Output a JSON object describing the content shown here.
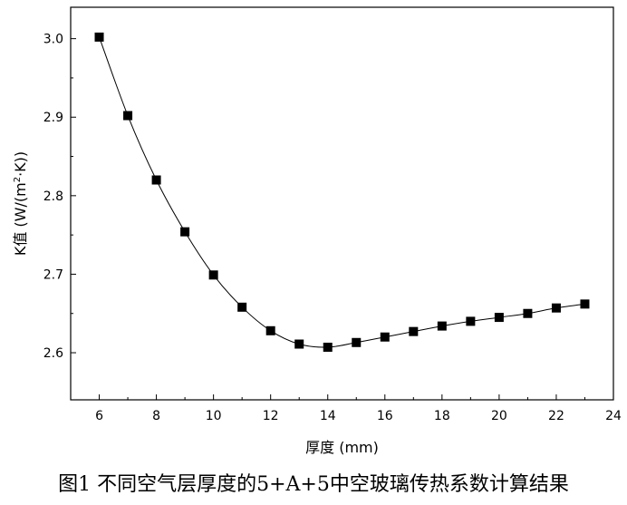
{
  "chart_data": {
    "type": "line",
    "title": "",
    "xlabel": "厚度 (mm)",
    "ylabel": "K值 (W/(m²·K))",
    "ylabel_parts": {
      "main": "K值 (W/(m",
      "sup": "2",
      "tail": "·K))"
    },
    "xlim": [
      5,
      24
    ],
    "ylim": [
      2.54,
      3.04
    ],
    "xticks": [
      6,
      8,
      10,
      12,
      14,
      16,
      18,
      20,
      22,
      24
    ],
    "xtick_labels": [
      "6",
      "8",
      "10",
      "12",
      "14",
      "16",
      "18",
      "20",
      "22",
      "24"
    ],
    "yticks": [
      2.6,
      2.7,
      2.8,
      2.9,
      3.0
    ],
    "ytick_labels": [
      "2.6",
      "2.7",
      "2.8",
      "2.9",
      "3.0"
    ],
    "grid": false,
    "marker": "square",
    "color": "#000000",
    "x": [
      6,
      7,
      8,
      9,
      10,
      11,
      12,
      13,
      14,
      15,
      16,
      17,
      18,
      19,
      20,
      21,
      22,
      23
    ],
    "y": [
      3.002,
      2.902,
      2.82,
      2.754,
      2.699,
      2.658,
      2.628,
      2.611,
      2.607,
      2.613,
      2.62,
      2.627,
      2.634,
      2.64,
      2.645,
      2.65,
      2.657,
      2.662
    ]
  },
  "caption": "图1 不同空气层厚度的5+A+5中空玻璃传热系数计算结果"
}
